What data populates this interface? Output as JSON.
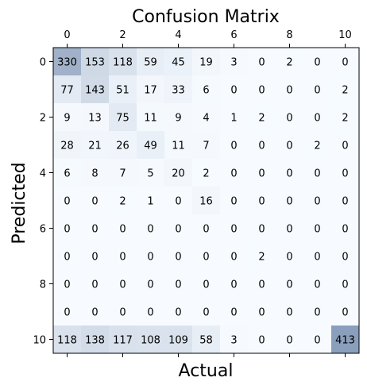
{
  "chart_data": {
    "type": "heatmap",
    "title": "Confusion Matrix",
    "xlabel": "Actual",
    "ylabel": "Predicted",
    "x_ticks": [
      "0",
      "2",
      "4",
      "6",
      "8",
      "10"
    ],
    "y_ticks": [
      "0",
      "2",
      "4",
      "6",
      "8",
      "10"
    ],
    "x_axis_position": "top",
    "colormap": {
      "low": "#f7fbff",
      "high": "#8a9fbc"
    },
    "grid": false,
    "matrix": [
      [
        330,
        153,
        118,
        59,
        45,
        19,
        3,
        0,
        2,
        0,
        0
      ],
      [
        77,
        143,
        51,
        17,
        33,
        6,
        0,
        0,
        0,
        0,
        2
      ],
      [
        9,
        13,
        75,
        11,
        9,
        4,
        1,
        2,
        0,
        0,
        2
      ],
      [
        28,
        21,
        26,
        49,
        11,
        7,
        0,
        0,
        0,
        2,
        0
      ],
      [
        6,
        8,
        7,
        5,
        20,
        2,
        0,
        0,
        0,
        0,
        0
      ],
      [
        0,
        0,
        2,
        1,
        0,
        16,
        0,
        0,
        0,
        0,
        0
      ],
      [
        0,
        0,
        0,
        0,
        0,
        0,
        0,
        0,
        0,
        0,
        0
      ],
      [
        0,
        0,
        0,
        0,
        0,
        0,
        0,
        2,
        0,
        0,
        0
      ],
      [
        0,
        0,
        0,
        0,
        0,
        0,
        0,
        0,
        0,
        0,
        0
      ],
      [
        0,
        0,
        0,
        0,
        0,
        0,
        0,
        0,
        0,
        0,
        0
      ],
      [
        118,
        138,
        117,
        108,
        109,
        58,
        3,
        0,
        0,
        0,
        413
      ]
    ]
  }
}
